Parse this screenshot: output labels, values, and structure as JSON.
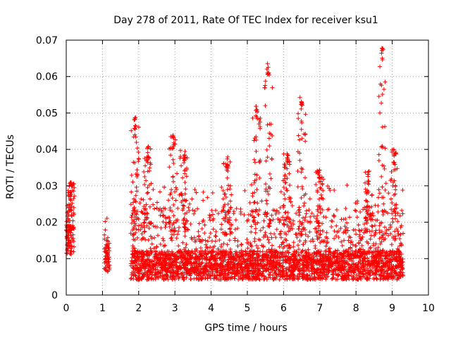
{
  "chart_data": {
    "type": "scatter",
    "title": "Day 278 of 2011, Rate Of TEC Index for receiver ksu1",
    "xlabel": "GPS time / hours",
    "ylabel": "ROTI / TECUs",
    "xlim": [
      0,
      10
    ],
    "ylim": [
      0,
      0.07
    ],
    "x_ticks": [
      0,
      1,
      2,
      3,
      4,
      5,
      6,
      7,
      8,
      9,
      10
    ],
    "y_ticks": [
      "0",
      "0.01",
      "0.02",
      "0.03",
      "0.04",
      "0.05",
      "0.06",
      "0.07"
    ],
    "y_tick_values": [
      0,
      0.01,
      0.02,
      0.03,
      0.04,
      0.05,
      0.06,
      0.07
    ],
    "grid": true,
    "marker": "+",
    "marker_color": "#ff0000",
    "note": "Dense scatter (thousands of points); values summarized as observation time windows with approximate per-time envelope (baseline / typical upper / peak bursts) read from the figure.",
    "series": [
      {
        "name": "ROTI",
        "windows": [
          {
            "x_range": [
              0.0,
              0.22
            ],
            "baseline": 0.014,
            "upper": 0.024,
            "peaks": [
              {
                "x": 0.13,
                "y": 0.031
              }
            ]
          },
          {
            "x_range": [
              1.05,
              1.2
            ],
            "baseline": 0.009,
            "upper": 0.016,
            "peaks": []
          },
          {
            "x_range": [
              1.78,
              9.3
            ],
            "baseline": 0.007,
            "upper": 0.02,
            "peaks": [
              {
                "x": 1.9,
                "y": 0.049
              },
              {
                "x": 2.25,
                "y": 0.041
              },
              {
                "x": 2.95,
                "y": 0.044
              },
              {
                "x": 3.25,
                "y": 0.04
              },
              {
                "x": 4.45,
                "y": 0.038
              },
              {
                "x": 5.25,
                "y": 0.052
              },
              {
                "x": 5.58,
                "y": 0.064
              },
              {
                "x": 6.1,
                "y": 0.04
              },
              {
                "x": 6.5,
                "y": 0.055
              },
              {
                "x": 7.0,
                "y": 0.035
              },
              {
                "x": 8.35,
                "y": 0.034
              },
              {
                "x": 8.72,
                "y": 0.068
              },
              {
                "x": 9.05,
                "y": 0.04
              }
            ]
          }
        ]
      }
    ]
  }
}
